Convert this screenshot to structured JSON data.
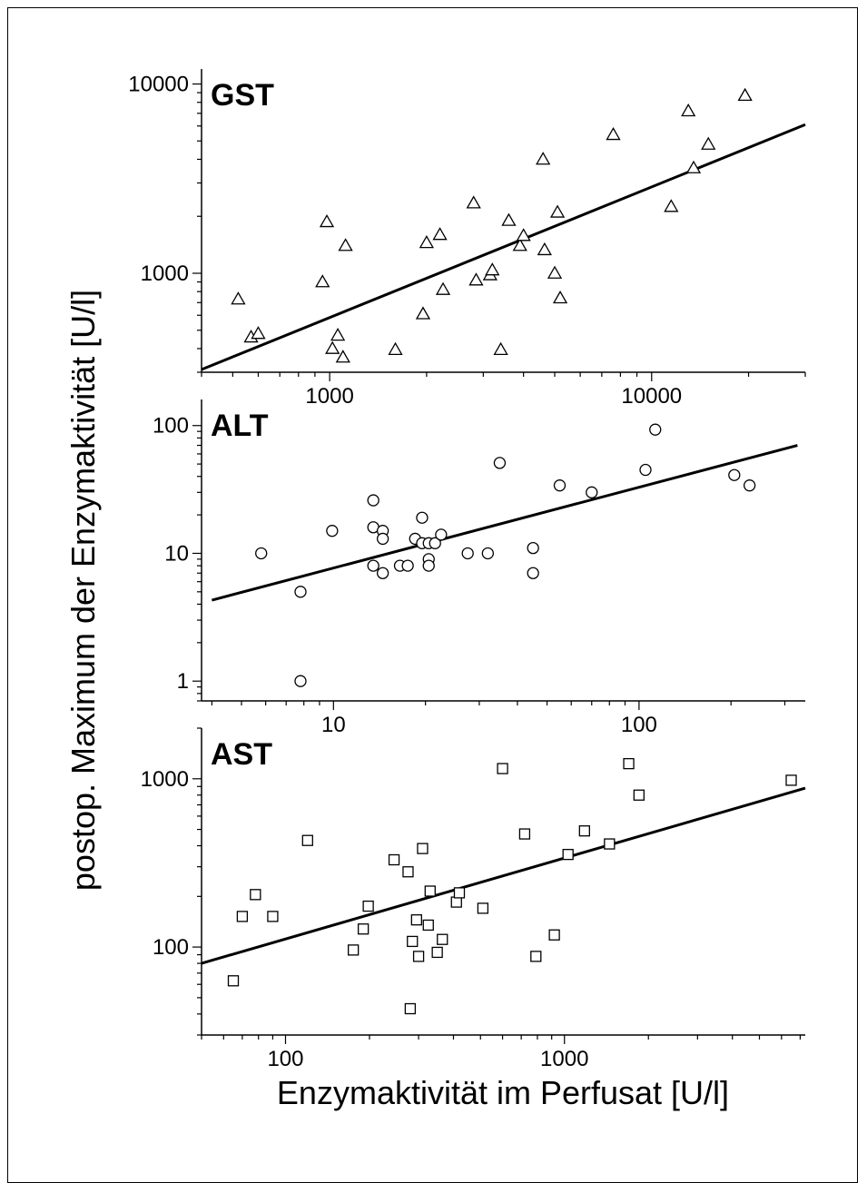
{
  "ylabel": "postop. Maximum der Enzymaktivität [U/l]",
  "xlabel": "Enzymaktivität im Perfusat [U/l]",
  "chart_data": [
    {
      "type": "scatter",
      "title": "GST",
      "scale": "log-log",
      "marker": "triangle",
      "xlim": [
        400,
        30000
      ],
      "ylim": [
        300,
        12000
      ],
      "x_ticks": [
        1000,
        10000
      ],
      "x_tick_labels": [
        "1000",
        "10000"
      ],
      "y_ticks": [
        1000,
        10000
      ],
      "y_tick_labels": [
        "1000",
        "10000"
      ],
      "fit_line": {
        "x": [
          400,
          30000
        ],
        "y": [
          310,
          6100
        ]
      },
      "points": [
        {
          "x": 520,
          "y": 730
        },
        {
          "x": 570,
          "y": 460
        },
        {
          "x": 600,
          "y": 480
        },
        {
          "x": 950,
          "y": 900
        },
        {
          "x": 980,
          "y": 1870
        },
        {
          "x": 1020,
          "y": 400
        },
        {
          "x": 1060,
          "y": 470
        },
        {
          "x": 1100,
          "y": 360
        },
        {
          "x": 1120,
          "y": 1400
        },
        {
          "x": 1600,
          "y": 395
        },
        {
          "x": 1950,
          "y": 610
        },
        {
          "x": 2000,
          "y": 1450
        },
        {
          "x": 2200,
          "y": 1600
        },
        {
          "x": 2250,
          "y": 820
        },
        {
          "x": 2800,
          "y": 2350
        },
        {
          "x": 2850,
          "y": 920
        },
        {
          "x": 3150,
          "y": 980
        },
        {
          "x": 3200,
          "y": 1040
        },
        {
          "x": 3400,
          "y": 395
        },
        {
          "x": 3600,
          "y": 1900
        },
        {
          "x": 3900,
          "y": 1400
        },
        {
          "x": 4000,
          "y": 1580
        },
        {
          "x": 4600,
          "y": 4000
        },
        {
          "x": 4650,
          "y": 1330
        },
        {
          "x": 5000,
          "y": 1000
        },
        {
          "x": 5100,
          "y": 2100
        },
        {
          "x": 5200,
          "y": 740
        },
        {
          "x": 7600,
          "y": 5400
        },
        {
          "x": 11500,
          "y": 2250
        },
        {
          "x": 13000,
          "y": 7200
        },
        {
          "x": 13500,
          "y": 3600
        },
        {
          "x": 15000,
          "y": 4800
        },
        {
          "x": 19500,
          "y": 8700
        }
      ]
    },
    {
      "type": "scatter",
      "title": "ALT",
      "scale": "log-log",
      "marker": "circle",
      "xlim": [
        3.7,
        350
      ],
      "ylim": [
        0.7,
        160
      ],
      "x_ticks": [
        10,
        100
      ],
      "x_tick_labels": [
        "10",
        "100"
      ],
      "y_ticks": [
        1,
        10,
        100
      ],
      "y_tick_labels": [
        "1",
        "10",
        "100"
      ],
      "fit_line": {
        "x": [
          4,
          330
        ],
        "y": [
          4.3,
          70
        ]
      },
      "points": [
        {
          "x": 5.8,
          "y": 10
        },
        {
          "x": 7.8,
          "y": 5
        },
        {
          "x": 7.8,
          "y": 1
        },
        {
          "x": 9.9,
          "y": 15
        },
        {
          "x": 13.5,
          "y": 26
        },
        {
          "x": 13.5,
          "y": 16
        },
        {
          "x": 13.5,
          "y": 8
        },
        {
          "x": 14.5,
          "y": 15
        },
        {
          "x": 14.5,
          "y": 13
        },
        {
          "x": 14.5,
          "y": 7
        },
        {
          "x": 16.5,
          "y": 8
        },
        {
          "x": 17.5,
          "y": 8
        },
        {
          "x": 18.5,
          "y": 13
        },
        {
          "x": 19.5,
          "y": 19
        },
        {
          "x": 19.5,
          "y": 12
        },
        {
          "x": 20.5,
          "y": 12
        },
        {
          "x": 20.5,
          "y": 9
        },
        {
          "x": 20.5,
          "y": 8
        },
        {
          "x": 21.5,
          "y": 12
        },
        {
          "x": 22.5,
          "y": 14
        },
        {
          "x": 27.5,
          "y": 10
        },
        {
          "x": 32,
          "y": 10
        },
        {
          "x": 35,
          "y": 51
        },
        {
          "x": 45,
          "y": 11
        },
        {
          "x": 45,
          "y": 7
        },
        {
          "x": 55,
          "y": 34
        },
        {
          "x": 70,
          "y": 30
        },
        {
          "x": 105,
          "y": 45
        },
        {
          "x": 113,
          "y": 93
        },
        {
          "x": 205,
          "y": 41
        },
        {
          "x": 230,
          "y": 34
        }
      ]
    },
    {
      "type": "scatter",
      "title": "AST",
      "scale": "log-log",
      "marker": "square",
      "xlim": [
        50,
        7300
      ],
      "ylim": [
        30,
        2000
      ],
      "x_ticks": [
        100,
        1000
      ],
      "x_tick_labels": [
        "100",
        "1000"
      ],
      "y_ticks": [
        100,
        1000
      ],
      "y_tick_labels": [
        "100",
        "1000"
      ],
      "fit_line": {
        "x": [
          50,
          7300
        ],
        "y": [
          80,
          880
        ]
      },
      "points": [
        {
          "x": 65,
          "y": 63
        },
        {
          "x": 70,
          "y": 152
        },
        {
          "x": 78,
          "y": 205
        },
        {
          "x": 90,
          "y": 152
        },
        {
          "x": 120,
          "y": 430
        },
        {
          "x": 175,
          "y": 96
        },
        {
          "x": 190,
          "y": 128
        },
        {
          "x": 198,
          "y": 175
        },
        {
          "x": 245,
          "y": 330
        },
        {
          "x": 275,
          "y": 280
        },
        {
          "x": 280,
          "y": 43
        },
        {
          "x": 285,
          "y": 108
        },
        {
          "x": 295,
          "y": 145
        },
        {
          "x": 300,
          "y": 88
        },
        {
          "x": 310,
          "y": 385
        },
        {
          "x": 325,
          "y": 135
        },
        {
          "x": 330,
          "y": 215
        },
        {
          "x": 350,
          "y": 93
        },
        {
          "x": 365,
          "y": 111
        },
        {
          "x": 410,
          "y": 185
        },
        {
          "x": 420,
          "y": 210
        },
        {
          "x": 510,
          "y": 170
        },
        {
          "x": 600,
          "y": 1150
        },
        {
          "x": 720,
          "y": 470
        },
        {
          "x": 790,
          "y": 88
        },
        {
          "x": 920,
          "y": 118
        },
        {
          "x": 1030,
          "y": 355
        },
        {
          "x": 1180,
          "y": 490
        },
        {
          "x": 1450,
          "y": 410
        },
        {
          "x": 1700,
          "y": 1230
        },
        {
          "x": 1850,
          "y": 800
        },
        {
          "x": 6500,
          "y": 980
        }
      ]
    }
  ]
}
